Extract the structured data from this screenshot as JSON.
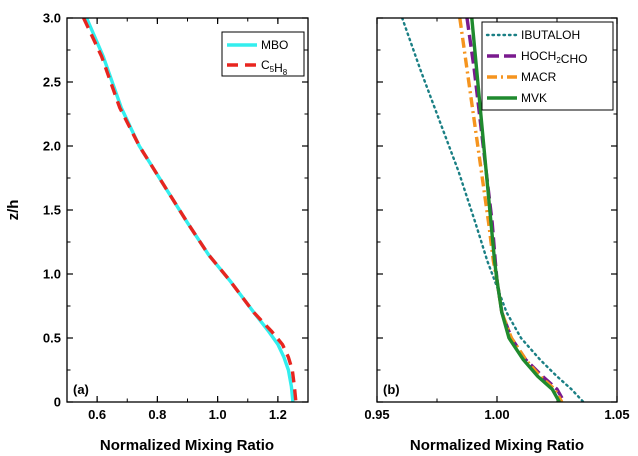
{
  "colors": {
    "MBO": "#33eeee",
    "C5H8": "#e8251f",
    "IBUTALOH": "#1a7f84",
    "HOCH2CHO": "#7a1a8e",
    "MACR": "#f5941e",
    "MVK": "#1f8a2e"
  },
  "chart_data": [
    {
      "type": "line",
      "panel_label": "(a)",
      "xlabel": "Normalized Mixing Ratio",
      "ylabel": "z/h",
      "xlim": [
        0.5,
        1.3
      ],
      "ylim": [
        0,
        3.0
      ],
      "x_ticks": [
        "0.6",
        "0.8",
        "1.0",
        "1.2"
      ],
      "y_ticks": [
        "0",
        "0.5",
        "1.0",
        "1.5",
        "2.0",
        "2.5",
        "3.0"
      ],
      "legend_position": "top-right",
      "series": [
        {
          "name": "MBO",
          "legend_main": "MBO",
          "legend_sub": "",
          "legend_tail": "",
          "style": "solid",
          "x": [
            0.565,
            0.62,
            0.68,
            0.74,
            0.82,
            0.9,
            0.97,
            1.04,
            1.12,
            1.17,
            1.2,
            1.22,
            1.235,
            1.245,
            1.25
          ],
          "y": [
            3.0,
            2.7,
            2.3,
            2.0,
            1.7,
            1.4,
            1.15,
            0.95,
            0.7,
            0.55,
            0.45,
            0.35,
            0.25,
            0.12,
            0.0
          ]
        },
        {
          "name": "C5H8",
          "legend_main": "C",
          "legend_sub": "5",
          "legend_tail": "H",
          "legend_sub2": "8",
          "style": "dash",
          "x": [
            0.555,
            0.615,
            0.675,
            0.74,
            0.82,
            0.9,
            0.97,
            1.04,
            1.12,
            1.18,
            1.215,
            1.235,
            1.248,
            1.255,
            1.26
          ],
          "y": [
            3.0,
            2.7,
            2.3,
            2.0,
            1.7,
            1.4,
            1.15,
            0.95,
            0.7,
            0.55,
            0.45,
            0.35,
            0.25,
            0.12,
            0.0
          ]
        }
      ]
    },
    {
      "type": "line",
      "panel_label": "(b)",
      "xlabel": "Normalized Mixing Ratio",
      "xlim": [
        0.95,
        1.05
      ],
      "ylim": [
        0,
        3.0
      ],
      "x_ticks": [
        "0.95",
        "1.00",
        "1.05"
      ],
      "legend_position": "top-right",
      "series": [
        {
          "name": "IBUTALOH",
          "legend_main": "IBUTALOH",
          "legend_sub": "",
          "legend_tail": "",
          "style": "dot",
          "x": [
            0.9605,
            0.968,
            0.976,
            0.984,
            0.991,
            0.996,
            1.0,
            1.004,
            1.01,
            1.018,
            1.025,
            1.031,
            1.036
          ],
          "y": [
            3.0,
            2.6,
            2.2,
            1.8,
            1.4,
            1.1,
            0.9,
            0.7,
            0.5,
            0.33,
            0.2,
            0.1,
            0.0
          ]
        },
        {
          "name": "HOCH2CHO",
          "legend_main": "HOCH",
          "legend_sub": "2",
          "legend_tail": "CHO",
          "style": "longdash",
          "x": [
            0.9875,
            0.9905,
            0.993,
            0.9955,
            0.998,
            0.9993,
            1.0,
            1.002,
            1.006,
            1.012,
            1.019,
            1.025,
            1.028
          ],
          "y": [
            3.0,
            2.6,
            2.2,
            1.8,
            1.4,
            1.1,
            0.95,
            0.7,
            0.5,
            0.33,
            0.2,
            0.1,
            0.0
          ]
        },
        {
          "name": "MACR",
          "legend_main": "MACR",
          "legend_sub": "",
          "legend_tail": "",
          "style": "dashdot",
          "x": [
            0.9845,
            0.9875,
            0.9905,
            0.9935,
            0.9965,
            0.9985,
            1.0,
            1.002,
            1.006,
            1.012,
            1.018,
            1.024,
            1.027
          ],
          "y": [
            3.0,
            2.6,
            2.2,
            1.8,
            1.4,
            1.1,
            0.95,
            0.7,
            0.5,
            0.33,
            0.2,
            0.1,
            0.0
          ]
        },
        {
          "name": "MVK",
          "legend_main": "MVK",
          "legend_sub": "",
          "legend_tail": "",
          "style": "solid",
          "x": [
            0.9895,
            0.9915,
            0.9935,
            0.9955,
            0.9975,
            0.999,
            1.0,
            1.002,
            1.005,
            1.011,
            1.017,
            1.023,
            1.026
          ],
          "y": [
            3.0,
            2.6,
            2.2,
            1.8,
            1.4,
            1.1,
            0.95,
            0.7,
            0.5,
            0.33,
            0.2,
            0.1,
            0.0
          ]
        }
      ]
    }
  ]
}
